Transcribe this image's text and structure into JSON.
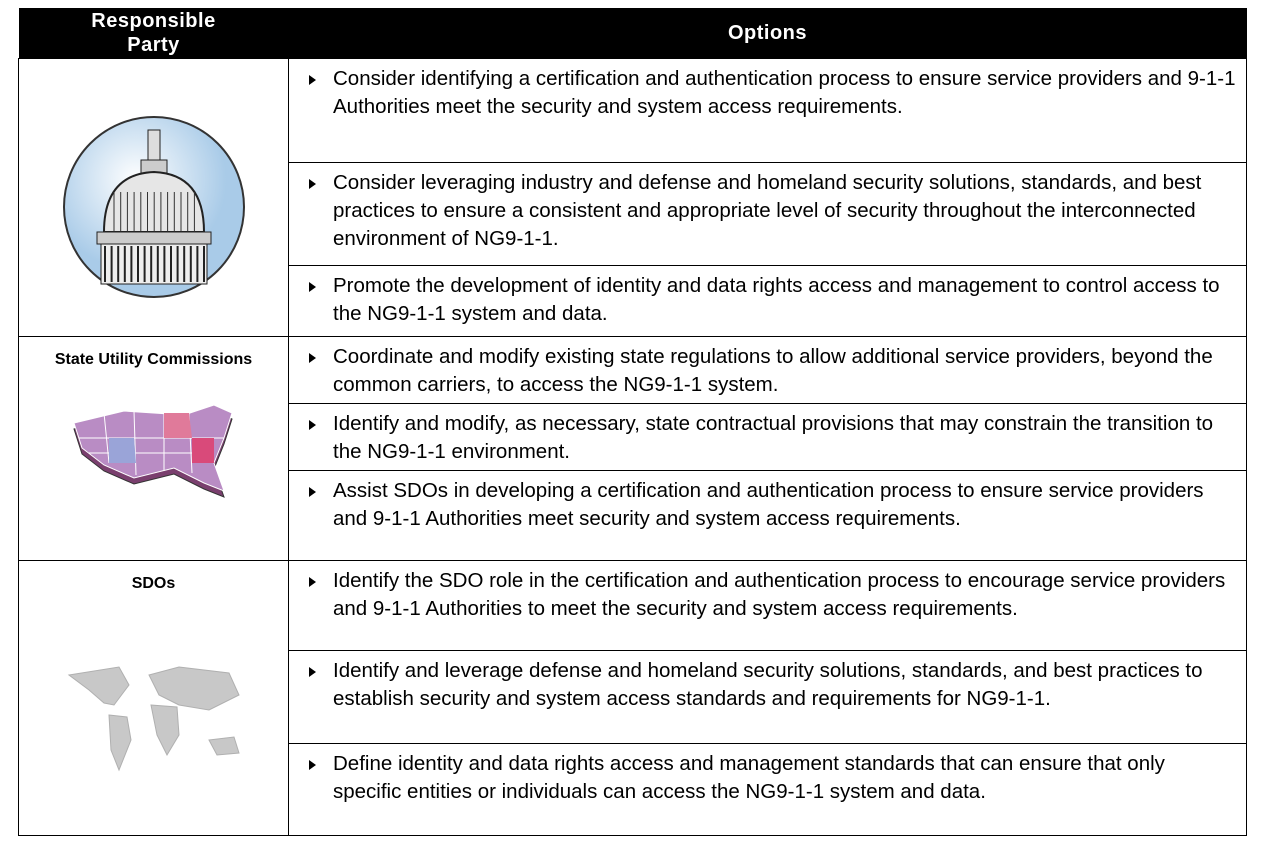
{
  "header": {
    "responsible_party": "Responsible Party",
    "options": "Options"
  },
  "groups": [
    {
      "options": [
        "Consider identifying a certification and authentication process to ensure service providers and 9-1-1 Authorities meet the security and system access requirements.",
        "Consider leveraging industry and defense and homeland security solutions, standards, and best practices to ensure a consistent and appropriate level of security throughout the interconnected environment of NG9-1-1.",
        "Promote the development of identity and data rights access and management to control access to the NG9-1-1 system and data."
      ]
    },
    {
      "party": "State Utility Commissions",
      "options": [
        "Coordinate and modify existing state regulations to allow additional service providers, beyond the common carriers, to access the NG9-1-1 system.",
        "Identify and modify, as necessary, state contractual provisions that may constrain the transition to the NG9-1-1 environment.",
        "Assist SDOs in developing a certification and authentication process to ensure service providers and 9-1-1 Authorities meet security and system access requirements."
      ]
    },
    {
      "party": "SDOs",
      "options": [
        "Identify the SDO role in the certification and authentication process to encourage service providers and 9-1-1 Authorities to meet the security and system access requirements.",
        "Identify and leverage defense and homeland security solutions, standards, and best practices to establish security and system access standards and requirements for NG9-1-1.",
        "Define identity and data rights access and management standards that can ensure that only specific entities or individuals can access the NG9-1-1 system and data."
      ]
    }
  ]
}
